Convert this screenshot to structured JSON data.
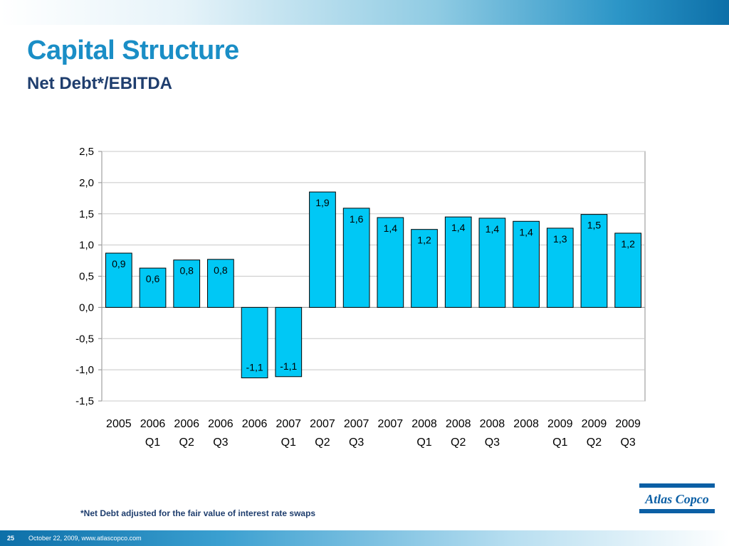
{
  "slide": {
    "title": "Capital Structure",
    "subtitle": "Net Debt*/EBITDA",
    "footnote": "*Net Debt adjusted for the fair value of interest rate swaps",
    "slide_number": "25",
    "footer_text": "October 22, 2009, www.atlascopco.com",
    "logo_text": "Atlas Copco"
  },
  "colors": {
    "bar_fill": "#00c8f5",
    "bar_stroke": "#000000",
    "title": "#1a8ec6",
    "subtitle": "#1f3e6e",
    "logo": "#0b5fa5"
  },
  "chart_data": {
    "type": "bar",
    "categories": [
      [
        "2005",
        ""
      ],
      [
        "2006",
        "Q1"
      ],
      [
        "2006",
        "Q2"
      ],
      [
        "2006",
        "Q3"
      ],
      [
        "2006",
        ""
      ],
      [
        "2007",
        "Q1"
      ],
      [
        "2007",
        "Q2"
      ],
      [
        "2007",
        "Q3"
      ],
      [
        "2007",
        ""
      ],
      [
        "2008",
        "Q1"
      ],
      [
        "2008",
        "Q2"
      ],
      [
        "2008",
        "Q3"
      ],
      [
        "2008",
        ""
      ],
      [
        "2009",
        "Q1"
      ],
      [
        "2009",
        "Q2"
      ],
      [
        "2009",
        "Q3"
      ]
    ],
    "values": [
      0.87,
      0.63,
      0.76,
      0.77,
      -1.13,
      -1.11,
      1.85,
      1.59,
      1.44,
      1.25,
      1.45,
      1.43,
      1.38,
      1.27,
      1.49,
      1.19
    ],
    "data_labels": [
      "0,9",
      "0,6",
      "0,8",
      "0,8",
      "-1,1",
      "-1,1",
      "1,9",
      "1,6",
      "1,4",
      "1,2",
      "1,4",
      "1,4",
      "1,4",
      "1,3",
      "1,5",
      "1,2"
    ],
    "y_ticks": [
      2.5,
      2.0,
      1.5,
      1.0,
      0.5,
      0.0,
      -0.5,
      -1.0,
      -1.5
    ],
    "y_tick_labels": [
      "2,5",
      "2,0",
      "1,5",
      "1,0",
      "0,5",
      "0,0",
      "-0,5",
      "-1,0",
      "-1,5"
    ],
    "ylim": [
      -1.5,
      2.5
    ],
    "grid": true,
    "legend": "none",
    "title": "",
    "xlabel": "",
    "ylabel": ""
  }
}
